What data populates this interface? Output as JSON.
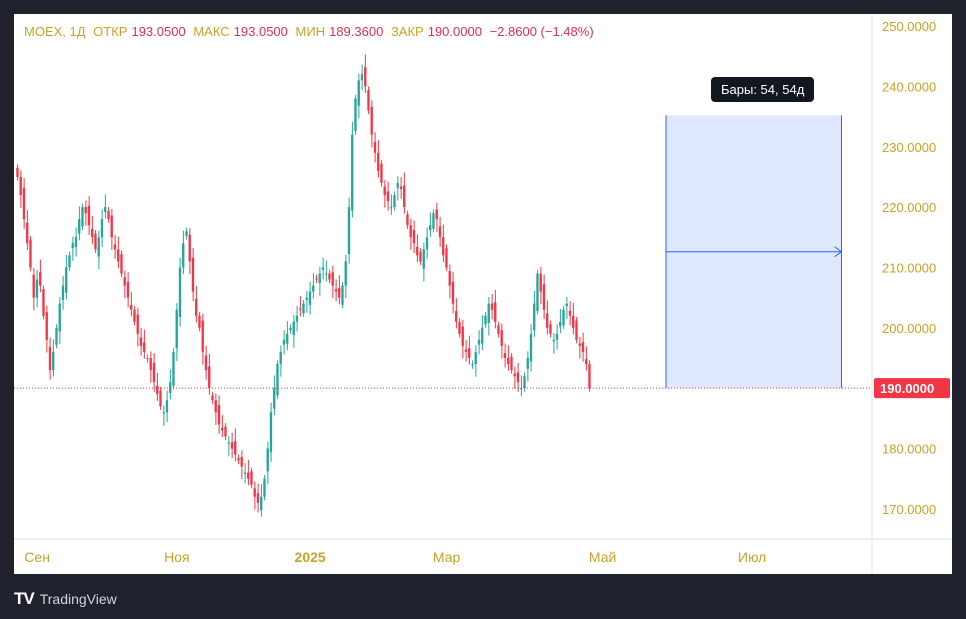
{
  "legend": {
    "symbol": "MOEX, 1Д",
    "open_label": "ОТКР",
    "open": "193.0500",
    "high_label": "МАКС",
    "high": "193.0500",
    "low_label": "МИН",
    "low": "189.3600",
    "close_label": "ЗАКР",
    "close": "190.0000",
    "change": "−2.8600 (−1.48%)"
  },
  "tooltip": {
    "text": "Бары: 54, 54д"
  },
  "brand": {
    "name": "TradingView",
    "logo": "TV"
  },
  "chart_data": {
    "type": "candlestick",
    "ylim": [
      165,
      252
    ],
    "yticks": [
      170,
      180,
      190,
      200,
      210,
      220,
      230,
      240,
      250
    ],
    "ytick_labels": [
      "170.0000",
      "180.0000",
      "190.0000",
      "200.0000",
      "210.0000",
      "220.0000",
      "230.0000",
      "240.0000",
      "250.0000"
    ],
    "xticks": [
      {
        "label": "Сен",
        "bar": 6
      },
      {
        "label": "Ноя",
        "bar": 49
      },
      {
        "label": "2025",
        "bar": 90,
        "bold": true
      },
      {
        "label": "Мар",
        "bar": 132
      },
      {
        "label": "Май",
        "bar": 180
      },
      {
        "label": "Июл",
        "bar": 226
      }
    ],
    "last_price": 190.0,
    "last_price_label": "190.0000",
    "colors": {
      "up": "#26a69a",
      "down": "#f23645",
      "axis_text": "#c9a227",
      "measure": "#2962ff"
    },
    "closes": [
      225,
      222,
      218,
      214,
      210,
      205,
      208,
      207,
      202,
      198,
      193,
      196,
      200,
      204,
      207,
      210,
      212,
      214,
      215,
      218,
      220,
      219,
      217,
      215,
      213,
      215,
      218,
      220,
      218,
      215,
      213,
      211,
      209,
      207,
      205,
      203,
      201,
      199,
      197,
      196,
      195,
      193,
      191,
      189,
      187,
      186,
      188,
      191,
      196,
      203,
      210,
      214,
      216,
      211,
      206,
      202,
      200,
      196,
      193,
      190,
      188,
      186,
      184,
      183,
      182,
      181,
      180,
      179,
      178,
      177,
      176,
      175,
      174,
      172,
      171,
      172,
      175,
      180,
      186,
      190,
      194,
      196,
      198,
      199,
      200,
      201,
      202,
      203,
      204,
      205,
      206,
      207,
      208,
      209,
      210,
      209,
      208,
      207,
      206,
      205,
      207,
      211,
      220,
      232,
      238,
      241,
      242,
      240,
      236,
      232,
      229,
      226,
      224,
      222,
      221,
      220,
      222,
      224,
      223,
      220,
      217,
      215,
      214,
      212,
      211,
      213,
      215,
      217,
      219,
      218,
      215,
      212,
      210,
      207,
      204,
      201,
      199,
      197,
      196,
      195,
      194,
      196,
      198,
      200,
      202,
      204,
      203,
      201,
      199,
      197,
      195,
      194,
      193,
      192,
      191,
      190,
      192,
      195,
      199,
      204,
      209,
      206,
      203,
      200,
      199,
      198,
      199,
      201,
      203,
      204,
      202,
      200,
      198,
      197,
      196,
      194,
      190
    ]
  },
  "measure": {
    "price_from": 190.0,
    "price_to": 235.2,
    "start_bar": 200,
    "bars": 54
  }
}
